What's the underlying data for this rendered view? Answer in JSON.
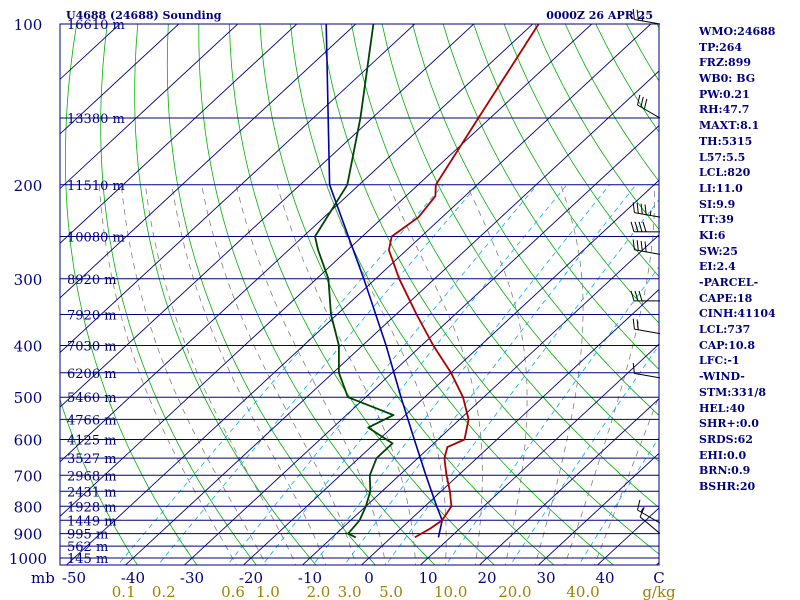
{
  "header": {
    "station_title": "U4688 (24688) Sounding",
    "datetime": "0000Z 26 APR 25"
  },
  "indices": [
    "WMO:24688",
    "TP:264",
    "FRZ:899",
    "WB0: BG",
    "PW:0.21",
    "RH:47.7",
    "MAXT:8.1",
    "TH:5315",
    "L57:5.5",
    "LCL:820",
    "LI:11.0",
    "SI:9.9",
    "TT:39",
    "KI:6",
    "SW:25",
    "EI:2.4",
    "-PARCEL-",
    "CAPE:18",
    "CINH:41104",
    "LCL:737",
    "CAP:10.8",
    "LFC:-1",
    "-WIND-",
    "STM:331/8",
    "HEL:40",
    "SHR+:0.0",
    "SRDS:62",
    "EHI:0.0",
    "BRN:0.9",
    "BSHR:20"
  ],
  "colors": {
    "frame": "#000080",
    "isobars": "#000080",
    "isotherms": "#000080",
    "dry_adiabats": "#00b000",
    "moist_adiabats": "#808080",
    "mixing_ratio": "#00aaff",
    "temperature": "#aa0000",
    "dewpoint": "#004400",
    "parcel": "#0000aa",
    "temp_axis_labels": "#000080",
    "mixing_ratio_labels": "#a08000"
  },
  "chart_data": {
    "type": "skew-t",
    "pressure_levels_hpa": [
      100,
      200,
      300,
      400,
      500,
      600,
      700,
      800,
      900,
      1000
    ],
    "pressure_tick_labels": [
      "100",
      "200",
      "300",
      "400",
      "500",
      "600",
      "700",
      "800",
      "900",
      "1000"
    ],
    "height_labels": [
      {
        "p": 100,
        "label": "16610 m"
      },
      {
        "p": 150,
        "label": "13380 m"
      },
      {
        "p": 200,
        "label": "11510 m"
      },
      {
        "p": 250,
        "label": "10080 m"
      },
      {
        "p": 300,
        "label": "8920 m"
      },
      {
        "p": 350,
        "label": "7920 m"
      },
      {
        "p": 400,
        "label": "7030 m"
      },
      {
        "p": 450,
        "label": "6206 m"
      },
      {
        "p": 500,
        "label": "5460 m"
      },
      {
        "p": 550,
        "label": "4766 m"
      },
      {
        "p": 600,
        "label": "4125 m"
      },
      {
        "p": 650,
        "label": "3527 m"
      },
      {
        "p": 700,
        "label": "2968 m"
      },
      {
        "p": 750,
        "label": "2431 m"
      },
      {
        "p": 800,
        "label": "1928 m"
      },
      {
        "p": 850,
        "label": "1449 m"
      },
      {
        "p": 900,
        "label": "995 m"
      },
      {
        "p": 950,
        "label": "562 m"
      },
      {
        "p": 1000,
        "label": "145 m"
      }
    ],
    "x_unit_label": "mb",
    "temp_ticks_c": [
      -50,
      -40,
      -30,
      -20,
      -10,
      0,
      10,
      20,
      30,
      40
    ],
    "temp_tick_labels": [
      "-50",
      "-40",
      "-30",
      "-20",
      "-10",
      "0",
      "10",
      "20",
      "30",
      "40",
      "C"
    ],
    "mixing_ratio_values": [
      0.1,
      0.2,
      0.6,
      1.0,
      2.0,
      3.0,
      5.0,
      10.0,
      20.0,
      40.0
    ],
    "mixing_ratio_labels": [
      "0.1",
      "0.2",
      "0.6",
      "1.0",
      "2.0",
      "3.0",
      "5.0",
      "10.0",
      "20.0",
      "40.0",
      "g/kg"
    ],
    "temperature_profile": [
      {
        "p": 915,
        "t": 4.0
      },
      {
        "p": 880,
        "t": 5.0
      },
      {
        "p": 850,
        "t": 5.5
      },
      {
        "p": 800,
        "t": 4.5
      },
      {
        "p": 750,
        "t": 1.5
      },
      {
        "p": 700,
        "t": -2.0
      },
      {
        "p": 650,
        "t": -5.5
      },
      {
        "p": 620,
        "t": -7.0
      },
      {
        "p": 600,
        "t": -5.5
      },
      {
        "p": 550,
        "t": -8.5
      },
      {
        "p": 500,
        "t": -13.5
      },
      {
        "p": 450,
        "t": -20.0
      },
      {
        "p": 400,
        "t": -28.0
      },
      {
        "p": 350,
        "t": -36.5
      },
      {
        "p": 300,
        "t": -46.0
      },
      {
        "p": 265,
        "t": -53.0
      },
      {
        "p": 250,
        "t": -55.0
      },
      {
        "p": 230,
        "t": -54.0
      },
      {
        "p": 210,
        "t": -55.0
      },
      {
        "p": 200,
        "t": -57.0
      },
      {
        "p": 150,
        "t": -62.0
      },
      {
        "p": 100,
        "t": -69.0
      }
    ],
    "dewpoint_profile": [
      {
        "p": 915,
        "t": -6.0
      },
      {
        "p": 900,
        "t": -8.0
      },
      {
        "p": 850,
        "t": -8.5
      },
      {
        "p": 800,
        "t": -10.0
      },
      {
        "p": 750,
        "t": -12.0
      },
      {
        "p": 700,
        "t": -15.0
      },
      {
        "p": 650,
        "t": -17.0
      },
      {
        "p": 610,
        "t": -17.0
      },
      {
        "p": 570,
        "t": -24.0
      },
      {
        "p": 540,
        "t": -22.0
      },
      {
        "p": 500,
        "t": -33.0
      },
      {
        "p": 450,
        "t": -39.0
      },
      {
        "p": 400,
        "t": -44.0
      },
      {
        "p": 350,
        "t": -51.0
      },
      {
        "p": 300,
        "t": -58.0
      },
      {
        "p": 265,
        "t": -65.0
      },
      {
        "p": 250,
        "t": -68.0
      },
      {
        "p": 200,
        "t": -72.0
      },
      {
        "p": 150,
        "t": -82.0
      },
      {
        "p": 100,
        "t": -97.0
      }
    ],
    "parcel_profile": [
      {
        "p": 915,
        "t": 8.0
      },
      {
        "p": 850,
        "t": 5.5
      },
      {
        "p": 800,
        "t": 2.0
      },
      {
        "p": 700,
        "t": -5.5
      },
      {
        "p": 600,
        "t": -14.0
      },
      {
        "p": 500,
        "t": -24.0
      },
      {
        "p": 400,
        "t": -36.0
      },
      {
        "p": 300,
        "t": -52.0
      },
      {
        "p": 200,
        "t": -75.0
      },
      {
        "p": 100,
        "t": -105.0
      }
    ],
    "wind_barbs": [
      {
        "p": 100,
        "dir": 280,
        "spd": 25
      },
      {
        "p": 150,
        "dir": 300,
        "spd": 30
      },
      {
        "p": 230,
        "dir": 280,
        "spd": 45
      },
      {
        "p": 245,
        "dir": 270,
        "spd": 40
      },
      {
        "p": 270,
        "dir": 280,
        "spd": 40
      },
      {
        "p": 330,
        "dir": 270,
        "spd": 30
      },
      {
        "p": 380,
        "dir": 280,
        "spd": 20
      },
      {
        "p": 460,
        "dir": 280,
        "spd": 10
      },
      {
        "p": 860,
        "dir": 300,
        "spd": 15
      },
      {
        "p": 900,
        "dir": 310,
        "spd": 10
      }
    ]
  }
}
